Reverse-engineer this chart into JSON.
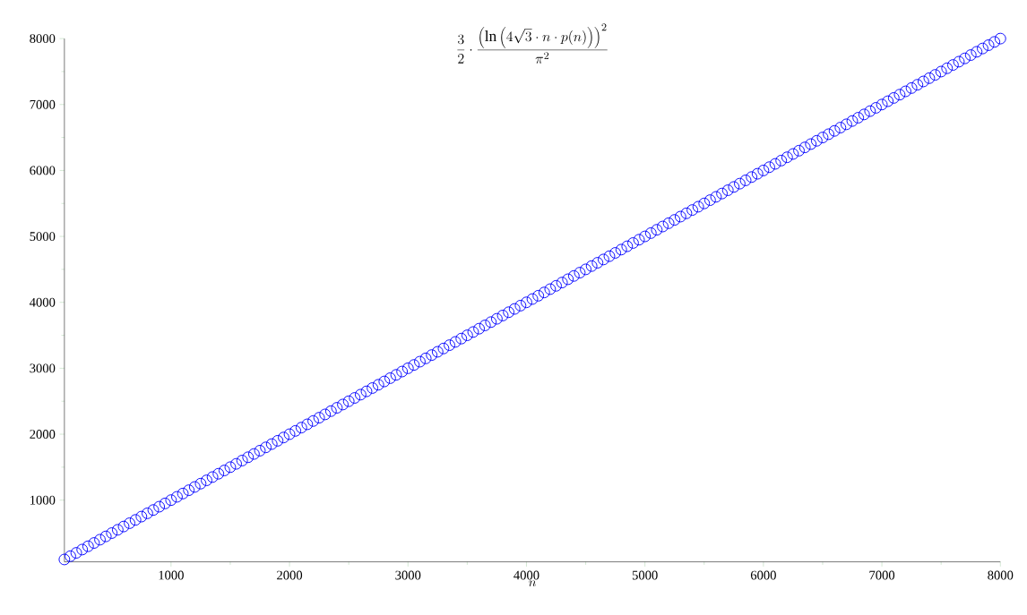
{
  "chart_data": {
    "type": "scatter",
    "title": "\\frac{3}{2}\\cdot\\frac{\\left(\\ln\\left(4\\sqrt{3}\\cdot n\\cdot p(n)\\right)\\right)^{2}}{\\pi^{2}}",
    "xlabel": "n",
    "x": [
      100,
      150,
      200,
      250,
      300,
      350,
      400,
      450,
      500,
      550,
      600,
      650,
      700,
      750,
      800,
      850,
      900,
      950,
      1000,
      1050,
      1100,
      1150,
      1200,
      1250,
      1300,
      1350,
      1400,
      1450,
      1500,
      1550,
      1600,
      1650,
      1700,
      1750,
      1800,
      1850,
      1900,
      1950,
      2000,
      2050,
      2100,
      2150,
      2200,
      2250,
      2300,
      2350,
      2400,
      2450,
      2500,
      2550,
      2600,
      2650,
      2700,
      2750,
      2800,
      2850,
      2900,
      2950,
      3000,
      3050,
      3100,
      3150,
      3200,
      3250,
      3300,
      3350,
      3400,
      3450,
      3500,
      3550,
      3600,
      3650,
      3700,
      3750,
      3800,
      3850,
      3900,
      3950,
      4000,
      4050,
      4100,
      4150,
      4200,
      4250,
      4300,
      4350,
      4400,
      4450,
      4500,
      4550,
      4600,
      4650,
      4700,
      4750,
      4800,
      4850,
      4900,
      4950,
      5000,
      5050,
      5100,
      5150,
      5200,
      5250,
      5300,
      5350,
      5400,
      5450,
      5500,
      5550,
      5600,
      5650,
      5700,
      5750,
      5800,
      5850,
      5900,
      5950,
      6000,
      6050,
      6100,
      6150,
      6200,
      6250,
      6300,
      6350,
      6400,
      6450,
      6500,
      6550,
      6600,
      6650,
      6700,
      6750,
      6800,
      6850,
      6900,
      6950,
      7000,
      7050,
      7100,
      7150,
      7200,
      7250,
      7300,
      7350,
      7400,
      7450,
      7500,
      7550,
      7600,
      7650,
      7700,
      7750,
      7800,
      7850,
      7900,
      7950,
      8000
    ],
    "values": [
      100,
      150,
      200,
      250,
      300,
      350,
      400,
      450,
      500,
      550,
      600,
      650,
      700,
      750,
      800,
      850,
      900,
      950,
      1000,
      1050,
      1100,
      1150,
      1200,
      1250,
      1300,
      1350,
      1400,
      1450,
      1500,
      1550,
      1600,
      1650,
      1700,
      1750,
      1800,
      1850,
      1900,
      1950,
      2000,
      2050,
      2100,
      2150,
      2200,
      2250,
      2300,
      2350,
      2400,
      2450,
      2500,
      2550,
      2600,
      2650,
      2700,
      2750,
      2800,
      2850,
      2900,
      2950,
      3000,
      3050,
      3100,
      3150,
      3200,
      3250,
      3300,
      3350,
      3400,
      3450,
      3500,
      3550,
      3600,
      3650,
      3700,
      3750,
      3800,
      3850,
      3900,
      3950,
      4000,
      4050,
      4100,
      4150,
      4200,
      4250,
      4300,
      4350,
      4400,
      4450,
      4500,
      4550,
      4600,
      4650,
      4700,
      4750,
      4800,
      4850,
      4900,
      4950,
      5000,
      5050,
      5100,
      5150,
      5200,
      5250,
      5300,
      5350,
      5400,
      5450,
      5500,
      5550,
      5600,
      5650,
      5700,
      5750,
      5800,
      5850,
      5900,
      5950,
      6000,
      6050,
      6100,
      6150,
      6200,
      6250,
      6300,
      6350,
      6400,
      6450,
      6500,
      6550,
      6600,
      6650,
      6700,
      6750,
      6800,
      6850,
      6900,
      6950,
      7000,
      7050,
      7100,
      7150,
      7200,
      7250,
      7300,
      7350,
      7400,
      7450,
      7500,
      7550,
      7600,
      7650,
      7700,
      7750,
      7800,
      7850,
      7900,
      7950,
      8000
    ],
    "color": "#0000ff",
    "marker": "circle",
    "xlim": [
      100,
      8000
    ],
    "ylim": [
      64,
      8000
    ],
    "xticks": [
      1000,
      2000,
      3000,
      4000,
      5000,
      6000,
      7000,
      8000
    ],
    "yticks": [
      1000,
      2000,
      3000,
      4000,
      5000,
      6000,
      7000,
      8000
    ]
  }
}
